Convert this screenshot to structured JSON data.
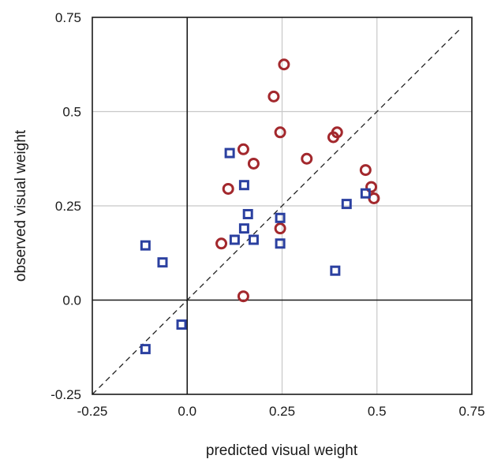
{
  "chart_data": {
    "type": "scatter",
    "title": "",
    "xlabel": "predicted visual weight",
    "ylabel": "observed visual weight",
    "xlim": [
      -0.25,
      0.75
    ],
    "ylim": [
      -0.25,
      0.75
    ],
    "xticks": [
      "-0.25",
      "0.0",
      "0.25",
      "0.5",
      "0.75"
    ],
    "yticks": [
      "-0.25",
      "0.0",
      "0.25",
      "0.5",
      "0.75"
    ],
    "xtick_values": [
      -0.25,
      0,
      0.25,
      0.5,
      0.75
    ],
    "ytick_values": [
      -0.25,
      0,
      0.25,
      0.5,
      0.75
    ],
    "grid": true,
    "reference_line": "y = x (dashed)",
    "series": [
      {
        "marker": "circle",
        "color": "#a3282d",
        "points": [
          [
            0.255,
            0.625
          ],
          [
            0.228,
            0.54
          ],
          [
            0.245,
            0.445
          ],
          [
            0.395,
            0.445
          ],
          [
            0.385,
            0.432
          ],
          [
            0.148,
            0.4
          ],
          [
            0.315,
            0.375
          ],
          [
            0.175,
            0.362
          ],
          [
            0.47,
            0.345
          ],
          [
            0.485,
            0.3
          ],
          [
            0.108,
            0.295
          ],
          [
            0.492,
            0.27
          ],
          [
            0.245,
            0.19
          ],
          [
            0.09,
            0.15
          ],
          [
            0.148,
            0.01
          ]
        ]
      },
      {
        "marker": "square",
        "color": "#2b40a0",
        "points": [
          [
            0.112,
            0.39
          ],
          [
            0.15,
            0.305
          ],
          [
            0.47,
            0.283
          ],
          [
            0.42,
            0.255
          ],
          [
            0.16,
            0.228
          ],
          [
            0.245,
            0.218
          ],
          [
            0.15,
            0.19
          ],
          [
            0.125,
            0.16
          ],
          [
            0.175,
            0.16
          ],
          [
            0.245,
            0.15
          ],
          [
            -0.11,
            0.145
          ],
          [
            -0.065,
            0.1
          ],
          [
            0.39,
            0.078
          ],
          [
            -0.015,
            -0.065
          ],
          [
            -0.11,
            -0.13
          ]
        ]
      }
    ]
  }
}
